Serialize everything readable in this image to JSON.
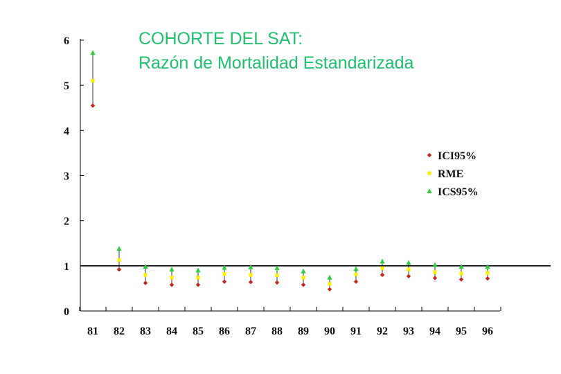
{
  "chart_data": {
    "type": "scatter",
    "title": [
      "COHORTE DEL SAT:",
      "Razón de Mortalidad Estandarizada"
    ],
    "xlabel": "",
    "ylabel": "",
    "categories": [
      "81",
      "82",
      "83",
      "84",
      "85",
      "86",
      "87",
      "88",
      "89",
      "90",
      "91",
      "92",
      "93",
      "94",
      "95",
      "96"
    ],
    "ylim": [
      0,
      6
    ],
    "yticks": [
      0,
      1,
      2,
      3,
      4,
      5,
      6
    ],
    "reference_line": 1,
    "legend_position": "right",
    "series": [
      {
        "name": "ICI95%",
        "marker": "diamond",
        "color": "#c0281e",
        "values": [
          4.55,
          0.92,
          0.62,
          0.58,
          0.58,
          0.65,
          0.64,
          0.63,
          0.58,
          0.48,
          0.65,
          0.8,
          0.77,
          0.73,
          0.7,
          0.72
        ]
      },
      {
        "name": "RME",
        "marker": "square",
        "color": "#ffee00",
        "values": [
          5.1,
          1.13,
          0.8,
          0.74,
          0.74,
          0.82,
          0.8,
          0.79,
          0.74,
          0.6,
          0.81,
          0.95,
          0.92,
          0.86,
          0.83,
          0.84
        ]
      },
      {
        "name": "ICS95%",
        "marker": "triangle",
        "color": "#2ecc40",
        "values": [
          5.72,
          1.38,
          0.98,
          0.92,
          0.9,
          0.96,
          0.97,
          0.95,
          0.88,
          0.74,
          0.93,
          1.1,
          1.07,
          1.02,
          0.98,
          0.98
        ]
      }
    ]
  }
}
